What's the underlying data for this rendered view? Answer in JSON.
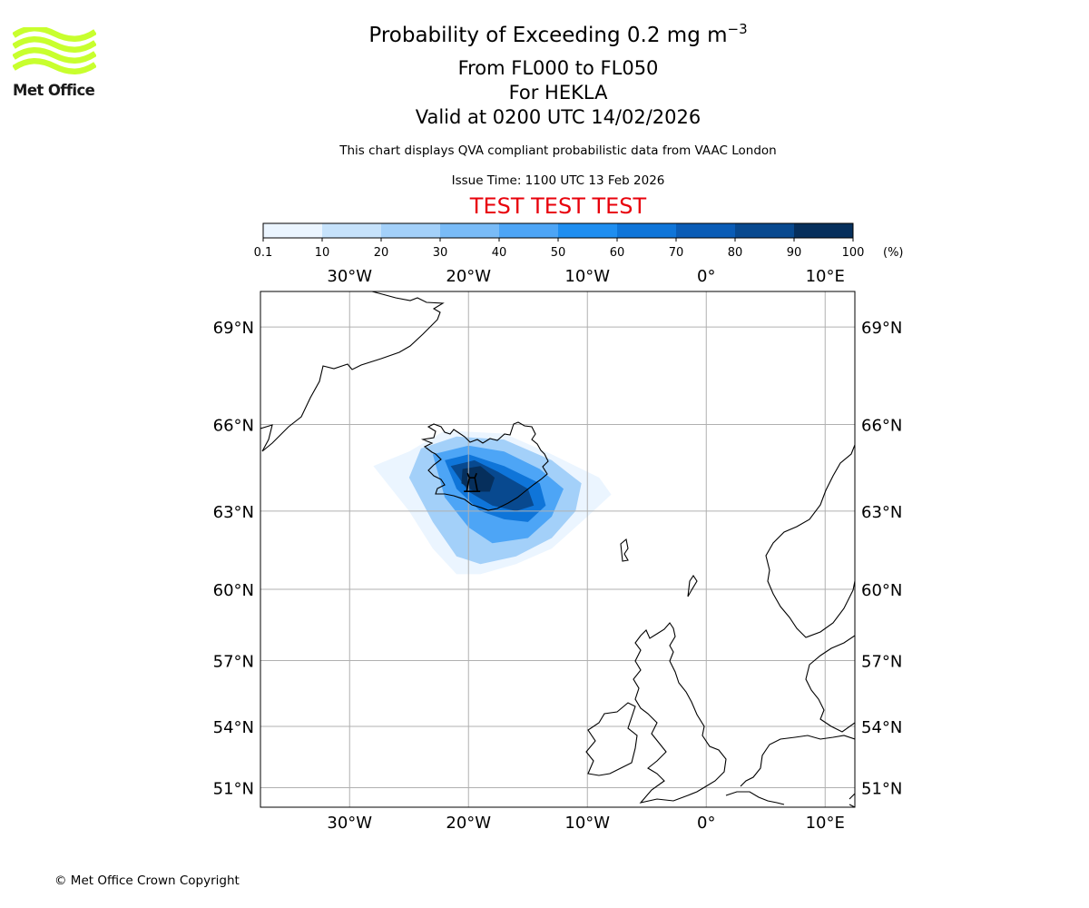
{
  "logo": {
    "text": "Met Office",
    "logo_color": "#c8ff2e",
    "icon": "met-office-wave-logo"
  },
  "header": {
    "title_main": "Probability of Exceeding 0.2 mg m",
    "title_sup": "−3",
    "levels": "From FL000 to FL050",
    "volcano": "For HEKLA",
    "valid": "Valid at 0200 UTC 14/02/2026",
    "description": "This chart displays QVA compliant probabilistic data from VAAC London",
    "issue_time": "Issue Time: 1100 UTC 13 Feb 2026",
    "test_banner": "TEST TEST TEST"
  },
  "colorbar": {
    "ticks": [
      "0.1",
      "10",
      "20",
      "30",
      "40",
      "50",
      "60",
      "70",
      "80",
      "90",
      "100"
    ],
    "unit": "(%)",
    "colors": [
      "#ebf5ff",
      "#c6e2fb",
      "#a3d0f9",
      "#79bbf7",
      "#4da5f6",
      "#1f8ef0",
      "#0f75d9",
      "#0a5cb6",
      "#08498f",
      "#062f5c"
    ]
  },
  "chart_data": {
    "type": "heatmap",
    "title": "Probability of Exceeding 0.2 mg m−3",
    "units": "%",
    "x_ticks": [
      "30°W",
      "20°W",
      "10°W",
      "0°",
      "10°E"
    ],
    "y_ticks": [
      "69°N",
      "66°N",
      "63°N",
      "60°N",
      "57°N",
      "54°N",
      "51°N"
    ],
    "lon_range": [
      -37.5,
      12.5
    ],
    "lat_range": [
      50,
      70
    ],
    "volcano": {
      "name": "HEKLA",
      "lon": -19.7,
      "lat": 64.0
    },
    "probability_regions": [
      {
        "level": "0.1-10",
        "polygon": [
          [
            -25,
            65.1
          ],
          [
            -22,
            65.8
          ],
          [
            -17,
            65.7
          ],
          [
            -13,
            65.0
          ],
          [
            -9,
            64.2
          ],
          [
            -8,
            63.6
          ],
          [
            -10,
            62.8
          ],
          [
            -13,
            61.6
          ],
          [
            -16,
            61.0
          ],
          [
            -19,
            60.6
          ],
          [
            -21,
            60.6
          ],
          [
            -23,
            61.6
          ],
          [
            -25,
            63.0
          ],
          [
            -28,
            64.6
          ]
        ]
      },
      {
        "level": "10-30",
        "polygon": [
          [
            -24,
            65.2
          ],
          [
            -21,
            65.6
          ],
          [
            -17,
            65.5
          ],
          [
            -13,
            64.8
          ],
          [
            -10.5,
            64.0
          ],
          [
            -11,
            63.0
          ],
          [
            -13,
            62.0
          ],
          [
            -16,
            61.3
          ],
          [
            -19,
            61.0
          ],
          [
            -21,
            61.3
          ],
          [
            -23,
            62.6
          ],
          [
            -25,
            64.2
          ]
        ]
      },
      {
        "level": "30-50",
        "polygon": [
          [
            -23,
            65.0
          ],
          [
            -20,
            65.3
          ],
          [
            -17,
            65.1
          ],
          [
            -14,
            64.5
          ],
          [
            -12,
            63.8
          ],
          [
            -13,
            62.8
          ],
          [
            -15,
            62.0
          ],
          [
            -18,
            61.8
          ],
          [
            -20,
            62.4
          ],
          [
            -22,
            63.5
          ]
        ]
      },
      {
        "level": "50-70",
        "polygon": [
          [
            -22,
            64.8
          ],
          [
            -20,
            65.0
          ],
          [
            -17,
            64.6
          ],
          [
            -14,
            64.0
          ],
          [
            -13.5,
            63.2
          ],
          [
            -15,
            62.6
          ],
          [
            -17,
            62.7
          ],
          [
            -19,
            63.0
          ],
          [
            -21,
            63.8
          ]
        ]
      },
      {
        "level": "70-90",
        "polygon": [
          [
            -21.5,
            64.6
          ],
          [
            -19.5,
            64.8
          ],
          [
            -17.5,
            64.4
          ],
          [
            -15,
            63.8
          ],
          [
            -14.5,
            63.2
          ],
          [
            -16,
            63.0
          ],
          [
            -18,
            63.2
          ],
          [
            -20,
            63.7
          ]
        ]
      },
      {
        "level": "90-100",
        "polygon": [
          [
            -20.5,
            64.5
          ],
          [
            -19,
            64.6
          ],
          [
            -17.8,
            64.2
          ],
          [
            -18.2,
            63.7
          ],
          [
            -19.5,
            63.7
          ],
          [
            -20.6,
            64.0
          ]
        ]
      }
    ]
  },
  "footer": {
    "copyright": "© Met Office Crown Copyright"
  }
}
